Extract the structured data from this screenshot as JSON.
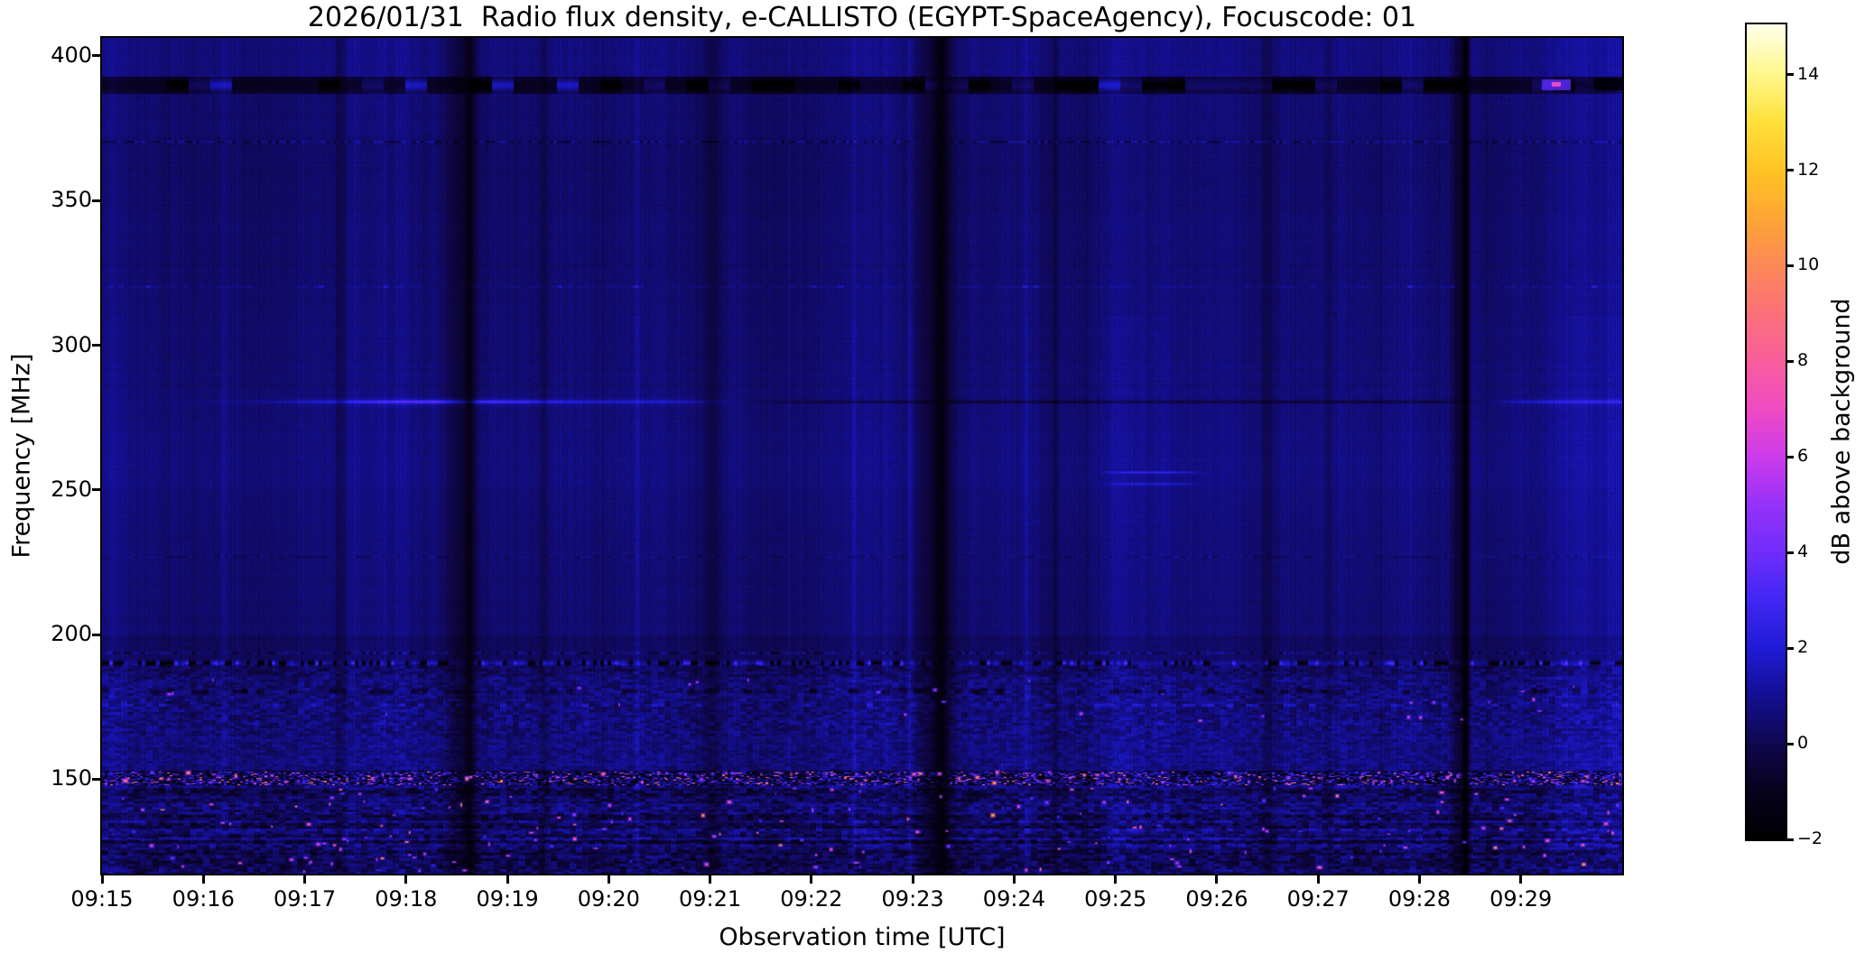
{
  "figure": {
    "title": "2026/01/31  Radio flux density, e-CALLISTO (EGYPT-SpaceAgency), Focuscode: 01",
    "background_color": "#ffffff",
    "text_color": "#000000"
  },
  "chart_data": {
    "type": "heatmap",
    "title": "2026/01/31  Radio flux density, e-CALLISTO (EGYPT-SpaceAgency), Focuscode: 01",
    "xlabel": "Observation time [UTC]",
    "ylabel": "Frequency [MHz]",
    "colorbar_label": "dB above background",
    "x_ticks": [
      "09:15",
      "09:16",
      "09:17",
      "09:18",
      "09:19",
      "09:20",
      "09:21",
      "09:22",
      "09:23",
      "09:24",
      "09:25",
      "09:26",
      "09:27",
      "09:28",
      "09:29"
    ],
    "x_range_minutes": [
      0,
      15
    ],
    "x_start_label": "09:15",
    "y_ticks": [
      400,
      350,
      300,
      250,
      200,
      150
    ],
    "y_range_mhz": [
      117.4,
      406.2
    ],
    "grid": false,
    "colorbar": {
      "range_db": [
        -2,
        15.05
      ],
      "ticks": [
        14,
        12,
        10,
        8,
        6,
        4,
        2,
        0,
        -2
      ],
      "tick_labels": [
        "14",
        "12",
        "10",
        "8",
        "6",
        "4",
        "2",
        "0",
        "−2"
      ],
      "colormap": "gnuplot2-like",
      "gradient": [
        [
          0.0,
          0,
          0,
          0
        ],
        [
          0.06,
          8,
          2,
          30
        ],
        [
          0.118,
          16,
          8,
          80
        ],
        [
          0.18,
          20,
          16,
          150
        ],
        [
          0.235,
          32,
          28,
          215
        ],
        [
          0.3,
          70,
          40,
          245
        ],
        [
          0.35,
          110,
          45,
          252
        ],
        [
          0.41,
          150,
          50,
          250
        ],
        [
          0.47,
          205,
          60,
          235
        ],
        [
          0.53,
          240,
          75,
          195
        ],
        [
          0.59,
          250,
          95,
          155
        ],
        [
          0.65,
          252,
          115,
          120
        ],
        [
          0.71,
          253,
          140,
          85
        ],
        [
          0.76,
          254,
          165,
          55
        ],
        [
          0.82,
          255,
          195,
          35
        ],
        [
          0.88,
          255,
          225,
          60
        ],
        [
          0.94,
          255,
          248,
          140
        ],
        [
          1.0,
          255,
          255,
          235
        ]
      ]
    },
    "features": {
      "base_level_db": 0.5,
      "bright_line_mhz": 280.6,
      "bright_line_peak_time_min": 3.4,
      "dark_band_mhz": [
        387,
        393.5
      ],
      "dotted_lines_mhz": [
        370.4,
        320.4,
        227.0
      ],
      "barcode_line_mhz": 190.3,
      "texture_band_mhz": [
        165,
        186
      ],
      "speckle_band_mhz": [
        148,
        152.5
      ],
      "chaos_band_mhz": [
        117.4,
        148
      ],
      "streaks_mhz": [
        256.2,
        252.2
      ],
      "streaks_time_min": [
        9.9,
        10.8
      ],
      "vertical_dark": [
        {
          "t": 2.35,
          "hw": 7,
          "m": 0.75
        },
        {
          "t": 3.55,
          "hw": 20,
          "m": 0.62
        },
        {
          "t": 3.62,
          "hw": 6,
          "m": 0.45
        },
        {
          "t": 4.35,
          "hw": 6,
          "m": 0.78
        },
        {
          "t": 6.02,
          "hw": 14,
          "m": 0.72
        },
        {
          "t": 8.22,
          "hw": 24,
          "m": 0.55
        },
        {
          "t": 8.28,
          "hw": 8,
          "m": 0.33
        },
        {
          "t": 9.4,
          "hw": 5,
          "m": 0.75
        },
        {
          "t": 11.5,
          "hw": 9,
          "m": 0.72
        },
        {
          "t": 12.1,
          "hw": 5,
          "m": 0.8
        },
        {
          "t": 13.38,
          "hw": 9,
          "m": 0.55
        },
        {
          "t": 13.45,
          "hw": 4.5,
          "m": 0.07
        }
      ],
      "vertical_bright": [
        {
          "t": 0.12,
          "hw": 10,
          "a": 0.3
        },
        {
          "t": 1.2,
          "hw": 4,
          "a": 0.28
        },
        {
          "t": 5.28,
          "hw": 3,
          "a": 0.55
        },
        {
          "t": 7.42,
          "hw": 3,
          "a": 0.6
        },
        {
          "t": 7.97,
          "hw": 3.5,
          "a": 0.7
        },
        {
          "t": 9.12,
          "hw": 3,
          "a": 0.55
        },
        {
          "t": 10.1,
          "hw": 26,
          "a": 0.5
        },
        {
          "t": 10.45,
          "hw": 10,
          "a": 0.3
        },
        {
          "t": 14.55,
          "hw": 30,
          "a": 0.35
        },
        {
          "t": 14.92,
          "hw": 12,
          "a": 0.4
        }
      ]
    }
  }
}
